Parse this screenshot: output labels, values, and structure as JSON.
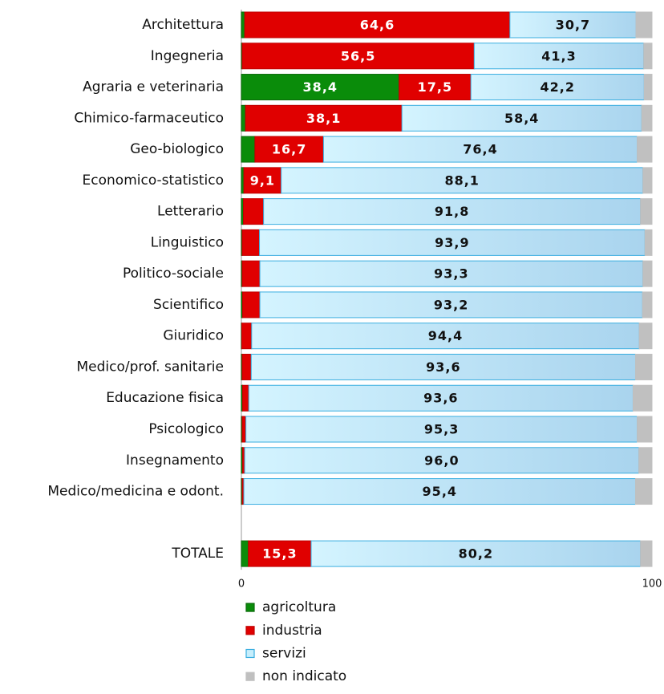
{
  "chart_data": {
    "type": "stacked-barh",
    "categories": [
      "Architettura",
      "Ingegneria",
      "Agraria e veterinaria",
      "Chimico-farmaceutico",
      "Geo-biologico",
      "Economico-statistico",
      "Letterario",
      "Linguistico",
      "Politico-sociale",
      "Scientifico",
      "Giuridico",
      "Medico/prof. sanitarie",
      "Educazione fisica",
      "Psicologico",
      "Insegnamento",
      "Medico/medicina e odont.",
      null,
      "TOTALE"
    ],
    "series": [
      {
        "name": "agricoltura",
        "color": "#0a8c0a",
        "values": [
          0.8,
          0.2,
          38.4,
          1.0,
          3.3,
          0.6,
          0.5,
          0.2,
          0.2,
          0.3,
          0.1,
          0.2,
          0.3,
          0.2,
          0.3,
          0.2,
          null,
          1.7
        ],
        "value_labels": [
          null,
          null,
          "38,4",
          null,
          null,
          null,
          null,
          null,
          null,
          null,
          null,
          null,
          null,
          null,
          null,
          null,
          null,
          null
        ]
      },
      {
        "name": "industria",
        "color": "#e00000",
        "values": [
          64.6,
          56.5,
          17.5,
          38.1,
          16.7,
          9.1,
          4.9,
          4.2,
          4.3,
          4.2,
          2.4,
          2.2,
          1.5,
          0.9,
          0.5,
          0.4,
          null,
          15.3
        ],
        "value_labels": [
          "64,6",
          "56,5",
          "17,5",
          "38,1",
          "16,7",
          "9,1",
          null,
          null,
          null,
          null,
          null,
          null,
          null,
          null,
          null,
          null,
          null,
          "15,3"
        ]
      },
      {
        "name": "servizi",
        "color": "#c6eefc",
        "values": [
          30.7,
          41.3,
          42.2,
          58.4,
          76.4,
          88.1,
          91.8,
          93.9,
          93.3,
          93.2,
          94.4,
          93.6,
          93.6,
          95.3,
          96.0,
          95.4,
          null,
          80.2
        ],
        "value_labels": [
          "30,7",
          "41,3",
          "42,2",
          "58,4",
          "76,4",
          "88,1",
          "91,8",
          "93,9",
          "93,3",
          "93,2",
          "94,4",
          "93,6",
          "93,6",
          "95,3",
          "96,0",
          "95,4",
          null,
          "80,2"
        ]
      },
      {
        "name": "non indicato",
        "color": "#c0c0c0",
        "values": [
          3.9,
          2.0,
          1.9,
          2.5,
          3.6,
          2.2,
          2.8,
          1.7,
          2.2,
          2.3,
          3.1,
          4.0,
          4.6,
          3.6,
          3.2,
          4.0,
          null,
          2.8
        ],
        "value_labels": [
          null,
          null,
          null,
          null,
          null,
          null,
          null,
          null,
          null,
          null,
          null,
          null,
          null,
          null,
          null,
          null,
          null,
          null
        ]
      }
    ],
    "xlim": [
      0,
      100
    ],
    "xticks": [
      0,
      100
    ],
    "legend": "bottom"
  }
}
